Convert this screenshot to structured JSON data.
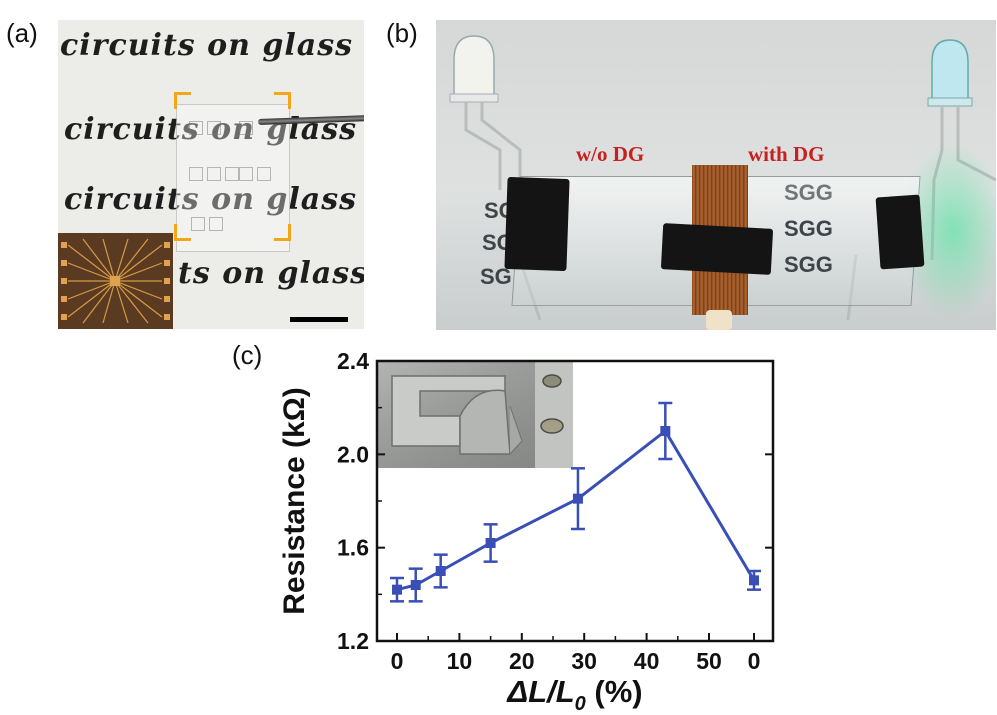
{
  "panels": {
    "a": {
      "label": "(a)",
      "text_lines": [
        "circuits on glass",
        "circuits on glass",
        "circuits on glass",
        "ts on glass"
      ]
    },
    "b": {
      "label": "(b)",
      "without_label": "w/o DG",
      "with_label": "with DG",
      "slide_text_left": [
        "SG",
        "SG",
        "SG"
      ],
      "slide_text_right": [
        "SGG",
        "SGG",
        "SGG"
      ]
    },
    "c": {
      "label": "(c)"
    }
  },
  "colors": {
    "series": "#3a4fb5",
    "accent_orange": "#f2a71b",
    "label_red": "#c8201f"
  },
  "chart_data": {
    "type": "line",
    "x_tick_labels": [
      "0",
      "10",
      "20",
      "30",
      "40",
      "50",
      "0"
    ],
    "xlabel_parts": {
      "delta": "ΔL/L",
      "sub": "0",
      "unit": " (%)"
    },
    "ylabel": "Resistance (kΩ)",
    "ylim": [
      1.2,
      2.4
    ],
    "yticks": [
      1.2,
      1.6,
      2.0,
      2.4
    ],
    "y_tick_labels": [
      "1.2",
      "1.6",
      "2.0",
      "2.4"
    ],
    "series": [
      {
        "points": [
          {
            "x": 0,
            "y": 1.42,
            "err": 0.05
          },
          {
            "x": 3,
            "y": 1.44,
            "err": 0.07
          },
          {
            "x": 7,
            "y": 1.5,
            "err": 0.07
          },
          {
            "x": 15,
            "y": 1.62,
            "err": 0.08
          },
          {
            "x": 29,
            "y": 1.81,
            "err": 0.13
          },
          {
            "x": 43,
            "y": 2.1,
            "err": 0.12
          },
          {
            "x": 0,
            "y": 1.46,
            "err": 0.04,
            "release": true
          }
        ]
      }
    ],
    "grid": false,
    "legend": "none"
  }
}
